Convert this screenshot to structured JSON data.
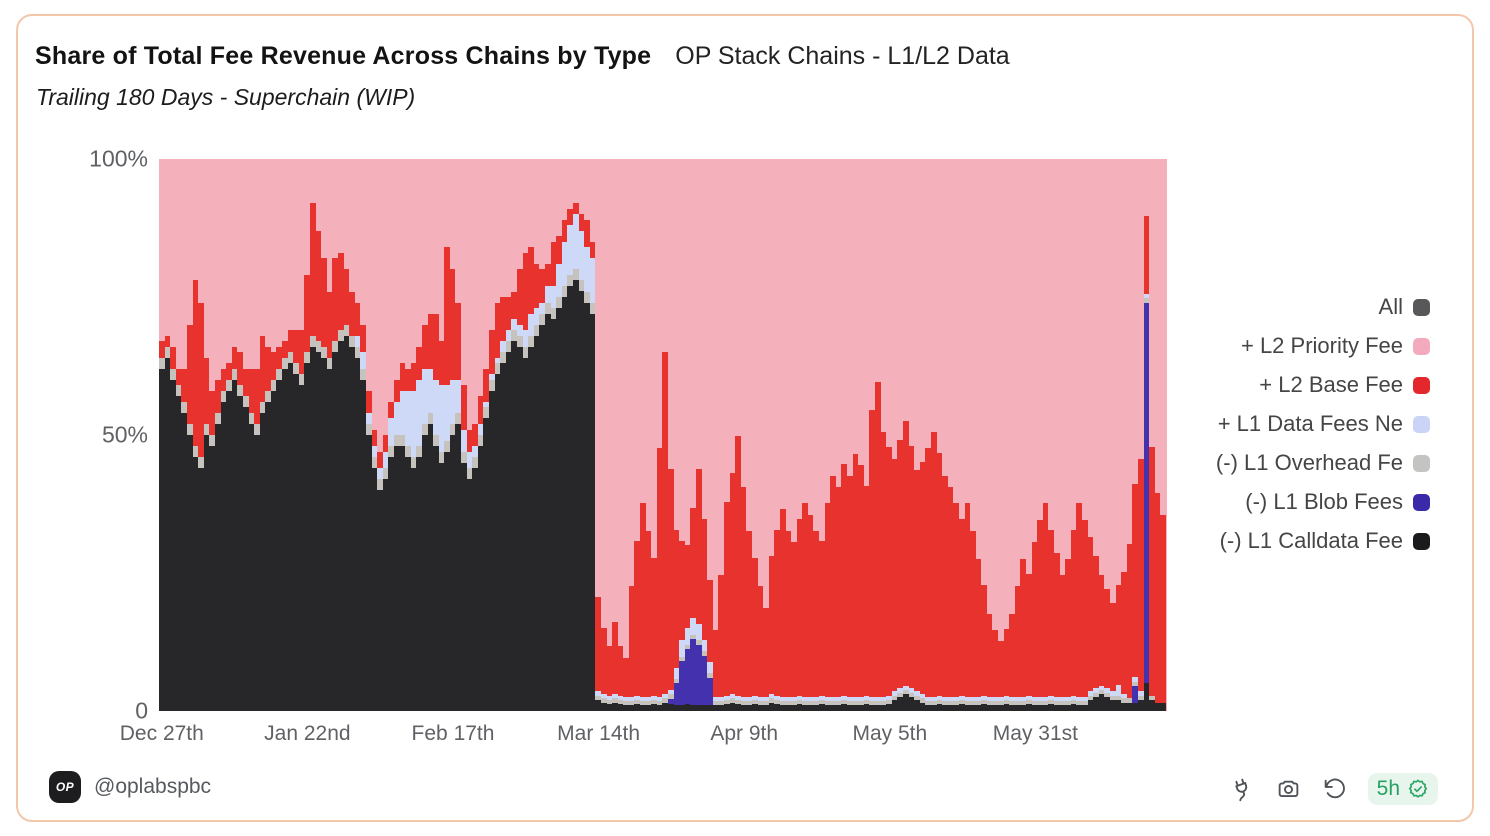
{
  "header": {
    "title": "Share of Total Fee Revenue Across Chains by Type",
    "title_secondary": "OP Stack Chains - L1/L2 Data",
    "subtitle": "Trailing 180 Days - Superchain (WIP)"
  },
  "footer": {
    "avatar_text": "OP",
    "handle": "@oplabspbc",
    "action_icons": [
      "plug-icon",
      "camera-icon",
      "history-icon"
    ],
    "freshness_badge": {
      "label": "5h",
      "icon": "verified-check-icon",
      "text_color": "#27a162",
      "bg_color": "#e7f5ec"
    }
  },
  "colors": {
    "card_border": "#f2c7aa",
    "axis_text": "#5f6164",
    "legend_text": "#454545",
    "priority_pink": "#f4b1bb",
    "base_red": "#e8322d",
    "data_fees_blue": "#cdd9f6",
    "overhead_gray": "#c6c3be",
    "blob_navy": "#4331ae",
    "calldata_black": "#27272a",
    "all_gray": "#58585b"
  },
  "chart_data": {
    "type": "bar",
    "stacked": true,
    "normalized": "each bar totals 100%",
    "title": "Share of Total Fee Revenue Across Chains by Type",
    "xlabel": "",
    "ylabel": "",
    "ylim": [
      0,
      100
    ],
    "grid": false,
    "legend_position": "right",
    "legend": [
      {
        "label": "All",
        "color": "#58585b"
      },
      {
        "label": "+ L2 Priority Fee",
        "color": "#f2aabc"
      },
      {
        "label": "+ L2 Base Fee",
        "color": "#e4272b"
      },
      {
        "label": "+ L1 Data Fees Ne",
        "color": "#c9d4f7"
      },
      {
        "label": "(-) L1 Overhead Fe",
        "color": "#c4c4c2"
      },
      {
        "label": "(-) L1 Blob Fees",
        "color": "#3b2aa8"
      },
      {
        "label": "(-) L1 Calldata Fee",
        "color": "#1b1b1d"
      }
    ],
    "y_ticks": [
      {
        "label": "100%",
        "value": 100
      },
      {
        "label": "50%",
        "value": 50
      },
      {
        "label": "0",
        "value": 0
      }
    ],
    "x_ticks": [
      {
        "label": "Dec 27th",
        "day": 0
      },
      {
        "label": "Jan 22nd",
        "day": 26
      },
      {
        "label": "Feb 17th",
        "day": 52
      },
      {
        "label": "Mar 14th",
        "day": 78
      },
      {
        "label": "Apr 9th",
        "day": 104
      },
      {
        "label": "May 5th",
        "day": 130
      },
      {
        "label": "May 31st",
        "day": 156
      }
    ],
    "n_bars": 180,
    "stack_order": "bottom to top as listed in series[]; L2 Priority Fee fills the remainder of each bar to 100%",
    "series": [
      {
        "name": "(-) L1 Calldata Fee",
        "color": "#27272a",
        "values": [
          62,
          64,
          60,
          57,
          54,
          50,
          46,
          44,
          50,
          48,
          52,
          56,
          58,
          60,
          57,
          55,
          52,
          50,
          54,
          56,
          58,
          60,
          62,
          63,
          61,
          59,
          63,
          66,
          65,
          64,
          62,
          65,
          67,
          68,
          66,
          64,
          60,
          50,
          44,
          40,
          42,
          46,
          48,
          48,
          46,
          44,
          46,
          50,
          52,
          48,
          45,
          47,
          50,
          52,
          45,
          42,
          44,
          48,
          53,
          58,
          61,
          63,
          65,
          67,
          66,
          64,
          66,
          68,
          70,
          72,
          71,
          73,
          75,
          77,
          78,
          76,
          74,
          72,
          2,
          1.5,
          1.2,
          1.5,
          1.2,
          1,
          1,
          1.2,
          1,
          1,
          1.2,
          1,
          1.5,
          1.2,
          1,
          1,
          1.2,
          1,
          1,
          1,
          1,
          1,
          1,
          1.2,
          1.5,
          1.2,
          1,
          1,
          1.2,
          1,
          1,
          1.5,
          1.2,
          1,
          1,
          1,
          1.2,
          1,
          1,
          1,
          1.2,
          1,
          1,
          1,
          1.2,
          1,
          1,
          1,
          1.2,
          1,
          1,
          1,
          1.2,
          2,
          2.5,
          3,
          2.5,
          2,
          1.5,
          1,
          1,
          1.2,
          1,
          1,
          1,
          1.2,
          1,
          1,
          1,
          1.2,
          1,
          1,
          1,
          1.2,
          1,
          1,
          1,
          1.2,
          1,
          1,
          1,
          1.2,
          1,
          1,
          1,
          1.2,
          1,
          1,
          2,
          2.5,
          3,
          2.5,
          2,
          2,
          1.5,
          1.5,
          1.5,
          2,
          5,
          2,
          1.5,
          1.5
        ]
      },
      {
        "name": "(-) L1 Blob Fees",
        "color": "#4331ae",
        "values": [
          0,
          0,
          0,
          0,
          0,
          0,
          0,
          0,
          0,
          0,
          0,
          0,
          0,
          0,
          0,
          0,
          0,
          0,
          0,
          0,
          0,
          0,
          0,
          0,
          0,
          0,
          0,
          0,
          0,
          0,
          0,
          0,
          0,
          0,
          0,
          0,
          0,
          0,
          0,
          0,
          0,
          0,
          0,
          0,
          0,
          0,
          0,
          0,
          0,
          0,
          0,
          0,
          0,
          0,
          0,
          0,
          0,
          0,
          0,
          0,
          0,
          0,
          0,
          0,
          0,
          0,
          0,
          0,
          0,
          0,
          0,
          0,
          0,
          0,
          0,
          0,
          0,
          0,
          0,
          0,
          0,
          0,
          0,
          0,
          0,
          0,
          0,
          0,
          0,
          0,
          0,
          1,
          4,
          8,
          10,
          12,
          11,
          9,
          5,
          0,
          0,
          0,
          0,
          0,
          0,
          0,
          0,
          0,
          0,
          0,
          0,
          0,
          0,
          0,
          0,
          0,
          0,
          0,
          0,
          0,
          0,
          0,
          0,
          0,
          0,
          0,
          0,
          0,
          0,
          0,
          0,
          0,
          0,
          0,
          0,
          0,
          0,
          0,
          0,
          0,
          0,
          0,
          0,
          0,
          0,
          0,
          0,
          0,
          0,
          0,
          0,
          0,
          0,
          0,
          0,
          0,
          0,
          0,
          0,
          0,
          0,
          0,
          0,
          0,
          0,
          0,
          0,
          0,
          0,
          0,
          0,
          0,
          0,
          0,
          3,
          0,
          69,
          0,
          0,
          0
        ]
      },
      {
        "name": "(-) L1 Overhead Fe",
        "color": "#c6c3be",
        "values": [
          2,
          2,
          2,
          2,
          2,
          2,
          2,
          2,
          2,
          2,
          2,
          2,
          2,
          2,
          2,
          2,
          2,
          2,
          2,
          2,
          2,
          2,
          2,
          2,
          2,
          2,
          2,
          2,
          2,
          2,
          2,
          2,
          2,
          2,
          2,
          2,
          2,
          2,
          2,
          2,
          2,
          2,
          2,
          2,
          2,
          2,
          2,
          2,
          2,
          2,
          2,
          2,
          2,
          2,
          2,
          2,
          2,
          2,
          2,
          2,
          2,
          2,
          2,
          2,
          2,
          2,
          2,
          2,
          2,
          2,
          2,
          2,
          2,
          2,
          2,
          2,
          2,
          2,
          0.8,
          0.8,
          0.8,
          0.8,
          0.8,
          0.8,
          0.8,
          0.8,
          0.8,
          0.8,
          0.8,
          0.8,
          0.8,
          0.8,
          0.8,
          0.8,
          0.8,
          0.8,
          0.8,
          0.8,
          0.8,
          0.8,
          0.8,
          0.8,
          0.8,
          0.8,
          0.8,
          0.8,
          0.8,
          0.8,
          0.8,
          0.8,
          0.8,
          0.8,
          0.8,
          0.8,
          0.8,
          0.8,
          0.8,
          0.8,
          0.8,
          0.8,
          0.8,
          0.8,
          0.8,
          0.8,
          0.8,
          0.8,
          0.8,
          0.8,
          0.8,
          0.8,
          0.8,
          0.8,
          0.8,
          0.8,
          0.8,
          0.8,
          0.8,
          0.8,
          0.8,
          0.8,
          0.8,
          0.8,
          0.8,
          0.8,
          0.8,
          0.8,
          0.8,
          0.8,
          0.8,
          0.8,
          0.8,
          0.8,
          0.8,
          0.8,
          0.8,
          0.8,
          0.8,
          0.8,
          0.8,
          0.8,
          0.8,
          0.8,
          0.8,
          0.8,
          0.8,
          0.8,
          0.8,
          0.8,
          0.8,
          0.8,
          0.8,
          0.8,
          0.8,
          0.8,
          0.8,
          0.8,
          0.8,
          0.8
        ]
      },
      {
        "name": "+ L1 Data Fees Ne",
        "color": "#cdd9f6",
        "values": [
          0,
          0,
          0,
          0,
          0,
          0,
          0,
          0,
          0,
          0,
          0,
          0,
          0,
          0,
          0,
          0,
          0,
          0,
          0,
          0,
          0,
          0,
          0,
          0,
          0,
          0,
          0,
          0,
          0,
          0,
          0,
          0,
          0,
          0,
          0,
          2,
          3,
          2,
          2,
          2,
          3,
          5,
          6,
          8,
          10,
          12,
          12,
          10,
          8,
          10,
          12,
          10,
          8,
          6,
          4,
          3,
          2,
          2,
          1,
          1,
          1,
          2,
          2,
          2,
          2,
          3,
          4,
          3,
          2,
          3,
          4,
          6,
          8,
          9,
          10,
          9,
          8,
          8,
          0.8,
          0.8,
          0.8,
          0.8,
          0.8,
          0.8,
          0.8,
          0.8,
          0.8,
          0.8,
          0.8,
          0.8,
          0.8,
          0.8,
          2,
          3,
          3,
          3,
          3,
          2,
          2,
          0.8,
          0.8,
          0.8,
          0.8,
          0.8,
          0.8,
          0.8,
          0.8,
          0.8,
          0.8,
          0.8,
          0.8,
          0.8,
          0.8,
          0.8,
          0.8,
          0.8,
          0.8,
          0.8,
          0.8,
          0.8,
          0.8,
          0.8,
          0.8,
          0.8,
          0.8,
          0.8,
          0.8,
          0.8,
          0.8,
          0.8,
          0.8,
          0.8,
          0.8,
          0.8,
          0.8,
          0.8,
          0.8,
          0.8,
          0.8,
          0.8,
          0.8,
          0.8,
          0.8,
          0.8,
          0.8,
          0.8,
          0.8,
          0.8,
          0.8,
          0.8,
          0.8,
          0.8,
          0.8,
          0.8,
          0.8,
          0.8,
          0.8,
          0.8,
          0.8,
          0.8,
          0.8,
          0.8,
          0.8,
          0.8,
          0.8,
          0.8,
          0.8,
          0.8,
          0.8,
          0.8,
          0.8,
          2,
          0.8,
          0,
          0.8,
          0.8,
          0.8
        ]
      },
      {
        "name": "+ L2 Base Fee",
        "color": "#e8322d",
        "values": [
          3,
          2,
          4,
          3,
          6,
          18,
          30,
          28,
          12,
          8,
          6,
          4,
          3,
          4,
          6,
          5,
          8,
          10,
          12,
          8,
          5,
          4,
          3,
          4,
          6,
          8,
          14,
          24,
          20,
          16,
          12,
          15,
          14,
          10,
          8,
          6,
          5,
          4,
          3,
          3,
          3,
          3,
          4,
          5,
          4,
          5,
          6,
          8,
          10,
          12,
          8,
          25,
          20,
          14,
          8,
          4,
          4,
          5,
          6,
          8,
          10,
          8,
          6,
          5,
          10,
          14,
          12,
          8,
          6,
          4,
          8,
          5,
          4,
          3,
          2,
          3,
          5,
          3,
          17,
          12,
          9,
          13,
          9,
          7,
          20,
          28,
          35,
          30,
          25,
          45,
          62,
          40,
          25,
          18,
          15,
          20,
          28,
          22,
          15,
          12,
          22,
          35,
          40,
          47,
          38,
          30,
          25,
          20,
          16,
          25,
          30,
          34,
          30,
          28,
          32,
          35,
          33,
          30,
          28,
          35,
          40,
          38,
          42,
          40,
          44,
          42,
          38,
          52,
          57,
          48,
          45,
          42,
          45,
          48,
          44,
          40,
          42,
          45,
          48,
          44,
          40,
          38,
          35,
          32,
          35,
          30,
          25,
          20,
          15,
          12,
          10,
          12,
          15,
          20,
          25,
          22,
          28,
          32,
          35,
          30,
          26,
          22,
          25,
          30,
          35,
          32,
          28,
          24,
          20,
          18,
          16,
          18,
          22,
          28,
          35,
          42,
          14,
          45,
          38,
          34
        ]
      }
    ],
    "remainder_series": {
      "name": "+ L2 Priority Fee",
      "color": "#f4b1bb",
      "rule": "100 minus sum of the other series"
    }
  }
}
